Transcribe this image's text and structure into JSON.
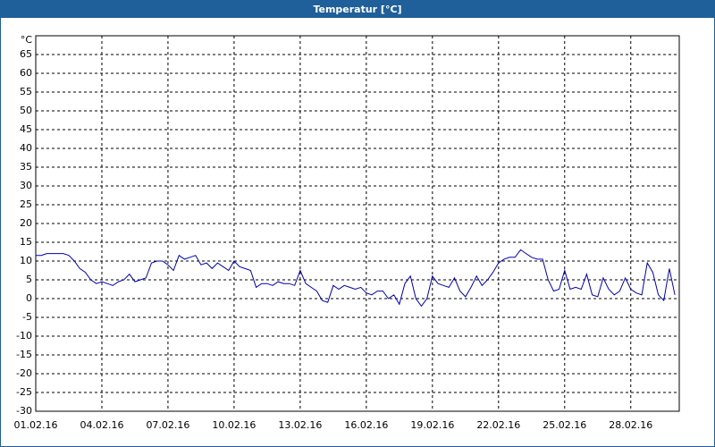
{
  "chart_data": {
    "type": "line",
    "title": "Temperatur [°C]",
    "y_label": "°C",
    "x": [
      0,
      0.25,
      0.5,
      0.75,
      1,
      1.25,
      1.5,
      1.75,
      2,
      2.25,
      2.5,
      2.75,
      3,
      3.25,
      3.5,
      3.75,
      4,
      4.25,
      4.5,
      4.75,
      5,
      5.25,
      5.5,
      5.75,
      6,
      6.25,
      6.5,
      6.75,
      7,
      7.25,
      7.5,
      7.75,
      8,
      8.25,
      8.5,
      8.75,
      9,
      9.25,
      9.5,
      9.75,
      10,
      10.25,
      10.5,
      10.75,
      11,
      11.25,
      11.5,
      11.75,
      12,
      12.25,
      12.5,
      12.75,
      13,
      13.25,
      13.5,
      13.75,
      14,
      14.25,
      14.5,
      14.75,
      15,
      15.25,
      15.5,
      15.75,
      16,
      16.25,
      16.5,
      16.75,
      17,
      17.25,
      17.5,
      17.75,
      18,
      18.25,
      18.5,
      18.75,
      19,
      19.25,
      19.5,
      19.75,
      20,
      20.25,
      20.5,
      20.75,
      21,
      21.25,
      21.5,
      21.75,
      22,
      22.25,
      22.5,
      22.75,
      23,
      23.25,
      23.5,
      23.75,
      24,
      24.25,
      24.5,
      24.75,
      25,
      25.25,
      25.5,
      25.75,
      26,
      26.25,
      26.5,
      26.75,
      27,
      27.25,
      27.5,
      27.75,
      28,
      28.25,
      28.5,
      28.75,
      29
    ],
    "series": [
      {
        "name": "Temperatur",
        "color": "#0000b4",
        "values": [
          11.5,
          11.5,
          12,
          12,
          12,
          12,
          11.5,
          10,
          8,
          7,
          5,
          4,
          4.5,
          4,
          3.5,
          4.5,
          5,
          6.5,
          4.5,
          5,
          5.5,
          9.5,
          10,
          10,
          9,
          7.5,
          11.5,
          10.5,
          11,
          11.5,
          9,
          9.5,
          8,
          9.5,
          8.5,
          7.5,
          10,
          8.5,
          8,
          7.5,
          3,
          4,
          4,
          3.5,
          4.5,
          4,
          4,
          3.5,
          7.5,
          4,
          3,
          2,
          -0.5,
          -1,
          3.5,
          2.5,
          3.5,
          3,
          2.5,
          3,
          1.5,
          1,
          2,
          2,
          0,
          1,
          -1.5,
          4,
          6,
          0,
          -2,
          0,
          6,
          4,
          3.5,
          3,
          5.5,
          2,
          0.5,
          3,
          6,
          3.5,
          5,
          7,
          9.5,
          10.5,
          11,
          11,
          13,
          12,
          11,
          10.5,
          10.5,
          5,
          2,
          2.5,
          7.5,
          2.5,
          3,
          2.5,
          6.5,
          1,
          0.5,
          5.5,
          2.5,
          1,
          2,
          5.5,
          2.5,
          1.5,
          1,
          9.5,
          7,
          1,
          -0.5,
          8,
          1
        ]
      }
    ],
    "xlim": [
      0,
      29.2
    ],
    "xticks": [
      {
        "value": 0,
        "label": "01.02.16"
      },
      {
        "value": 3,
        "label": "04.02.16"
      },
      {
        "value": 6,
        "label": "07.02.16"
      },
      {
        "value": 9,
        "label": "10.02.16"
      },
      {
        "value": 12,
        "label": "13.02.16"
      },
      {
        "value": 15,
        "label": "16.02.16"
      },
      {
        "value": 18,
        "label": "19.02.16"
      },
      {
        "value": 21,
        "label": "22.02.16"
      },
      {
        "value": 24,
        "label": "25.02.16"
      },
      {
        "value": 27,
        "label": "28.02.16"
      }
    ],
    "ylim": [
      -30,
      70
    ],
    "yticks": [
      -30,
      -25,
      -20,
      -15,
      -10,
      -5,
      0,
      5,
      10,
      15,
      20,
      25,
      30,
      35,
      40,
      45,
      50,
      55,
      60,
      65
    ],
    "grid": true
  }
}
